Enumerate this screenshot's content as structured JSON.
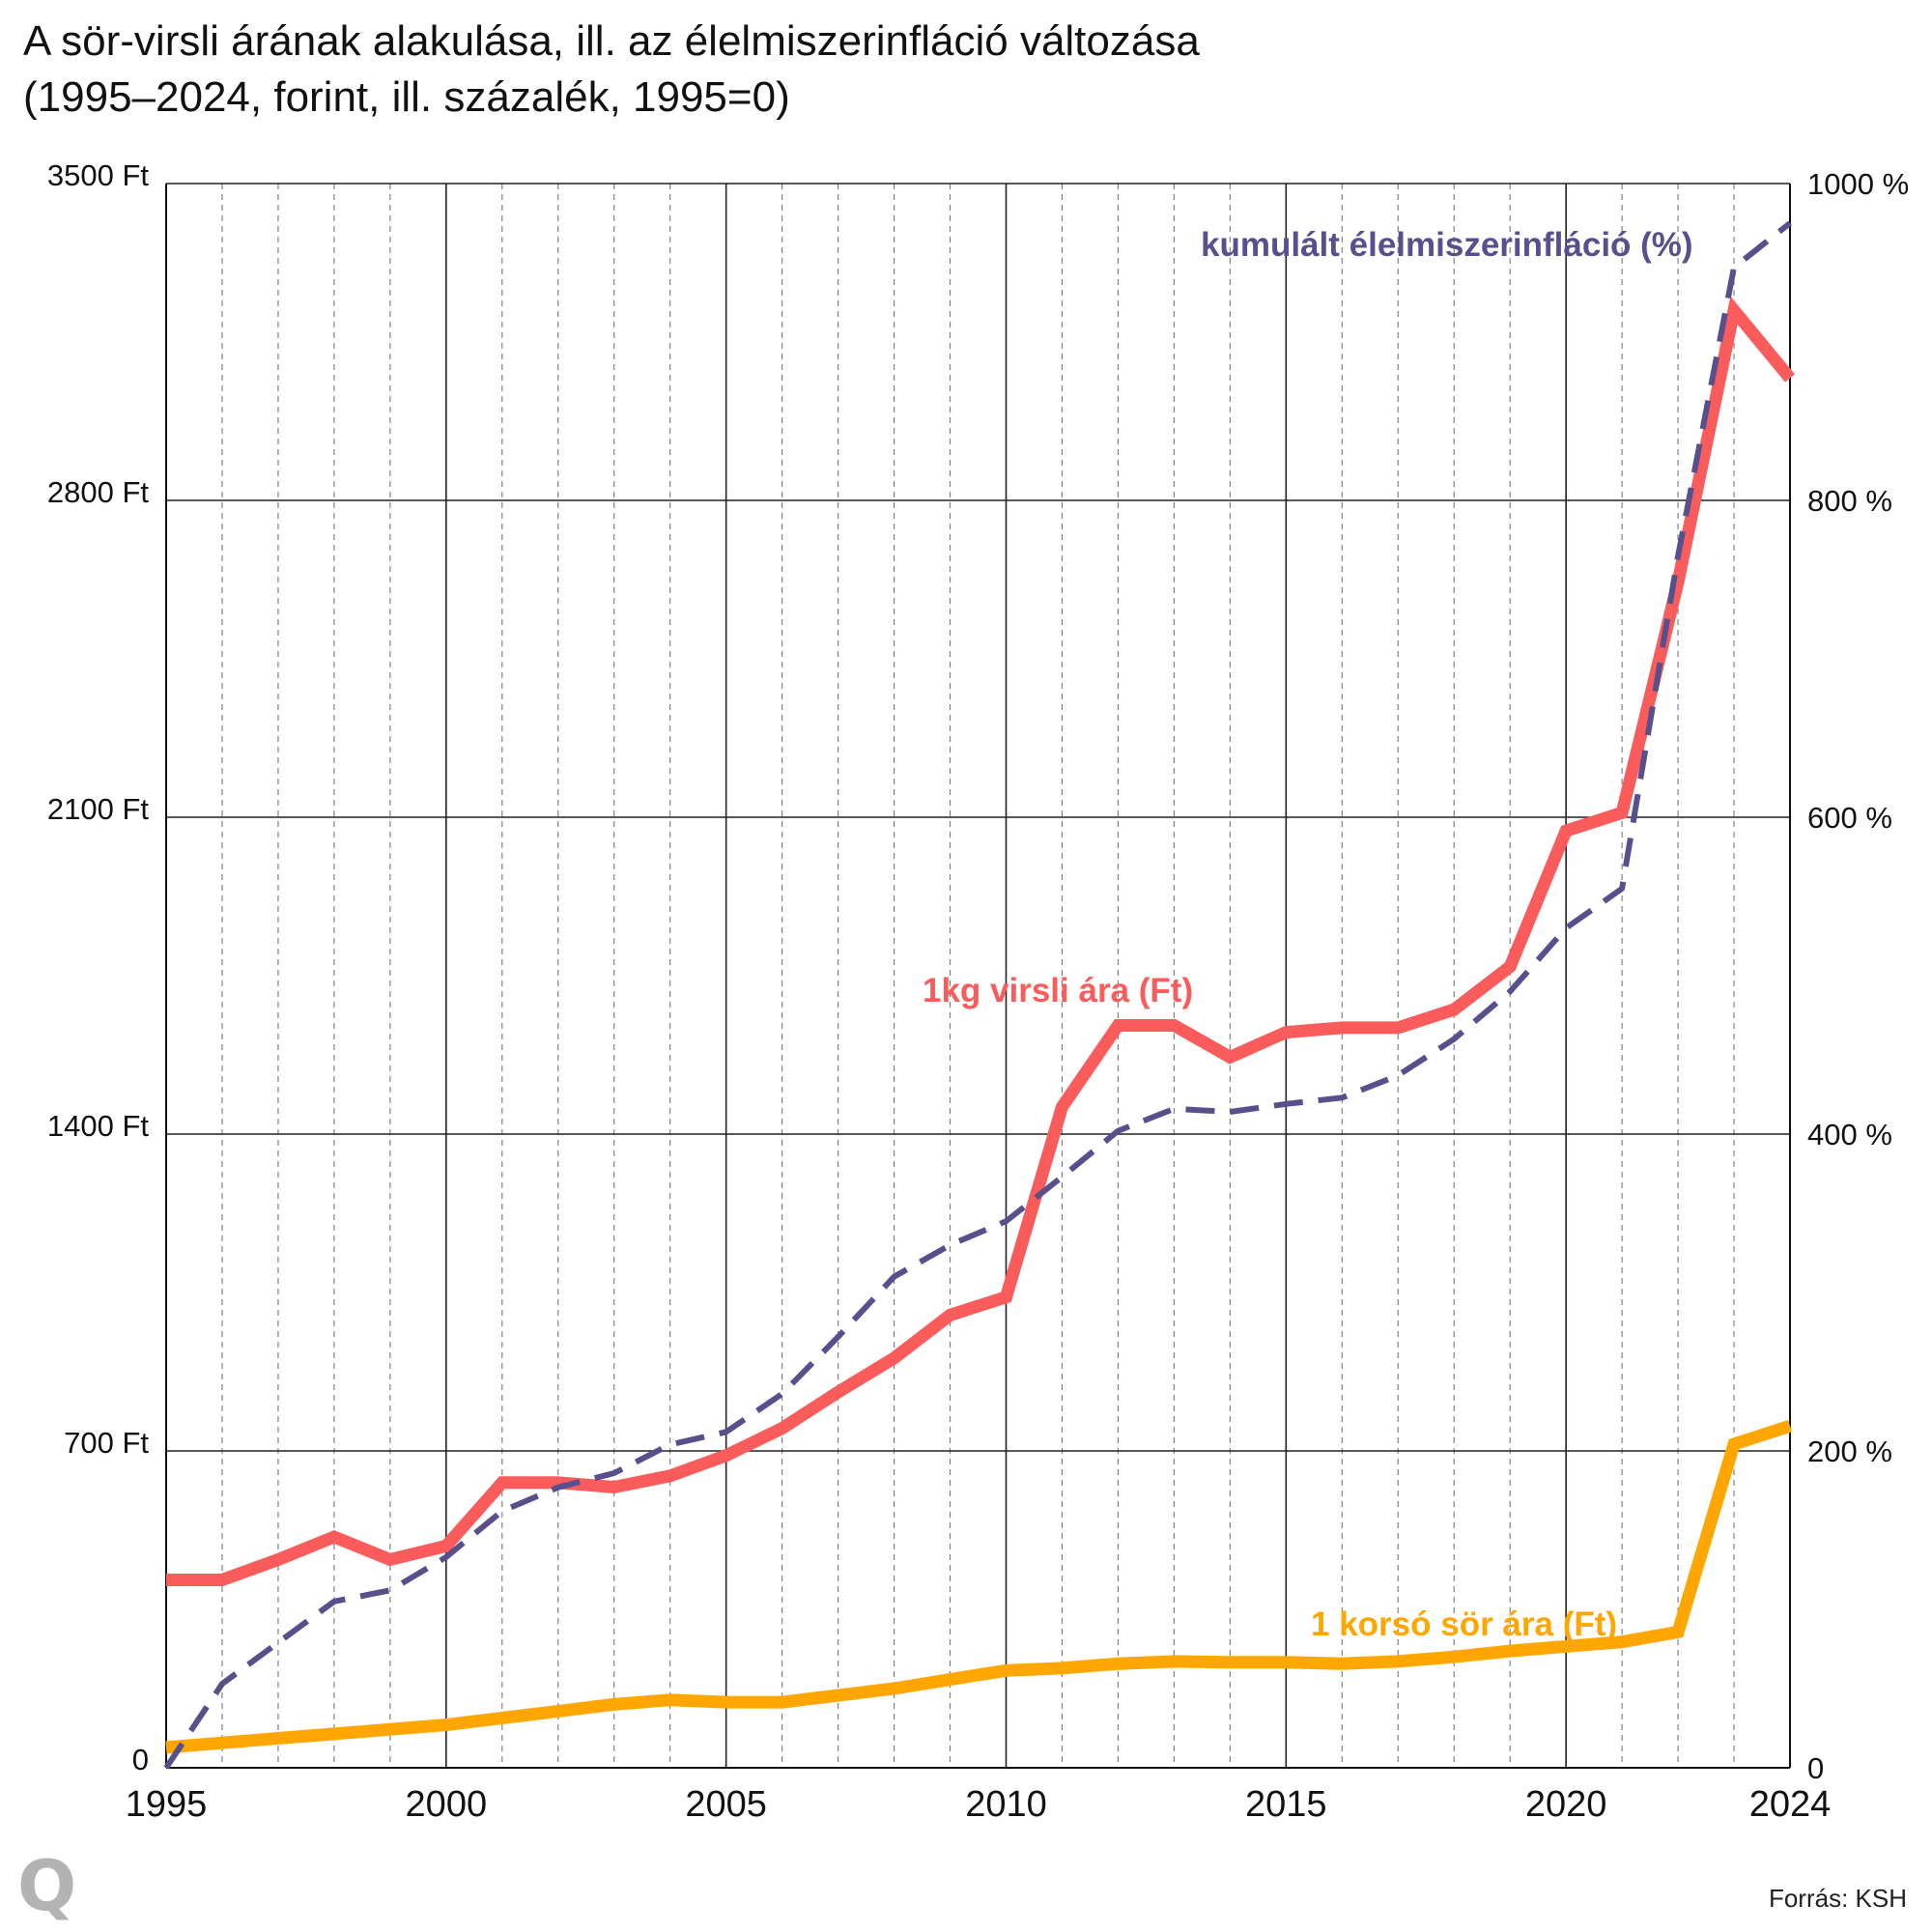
{
  "title": "A sör-virsli árának alakulása, ill. az élelmiszerinfláció változása\n(1995–2024, forint, ill. százalék, 1995=0)",
  "source": "Forrás: KSH",
  "logo": "Q",
  "chart_data": {
    "type": "line",
    "x": [
      1995,
      1996,
      1997,
      1998,
      1999,
      2000,
      2001,
      2002,
      2003,
      2004,
      2005,
      2006,
      2007,
      2008,
      2009,
      2010,
      2011,
      2012,
      2013,
      2014,
      2015,
      2016,
      2017,
      2018,
      2019,
      2020,
      2021,
      2022,
      2023,
      2024
    ],
    "x_ticks": [
      {
        "value": 1995,
        "label": "1995"
      },
      {
        "value": 2000,
        "label": "2000"
      },
      {
        "value": 2005,
        "label": "2005"
      },
      {
        "value": 2010,
        "label": "2010"
      },
      {
        "value": 2015,
        "label": "2015"
      },
      {
        "value": 2020,
        "label": "2020"
      },
      {
        "value": 2024,
        "label": "2024"
      }
    ],
    "xlim": [
      1995,
      2024
    ],
    "y_left": {
      "range": [
        0,
        3500
      ],
      "ticks": [
        {
          "value": 0,
          "label": "0"
        },
        {
          "value": 700,
          "label": "700 Ft"
        },
        {
          "value": 1400,
          "label": "1400 Ft"
        },
        {
          "value": 2100,
          "label": "2100 Ft"
        },
        {
          "value": 2800,
          "label": "2800 Ft"
        },
        {
          "value": 3500,
          "label": "3500 Ft"
        }
      ]
    },
    "y_right": {
      "range": [
        0,
        1000
      ],
      "ticks": [
        {
          "value": 0,
          "label": "0"
        },
        {
          "value": 200,
          "label": "200 %"
        },
        {
          "value": 400,
          "label": "400 %"
        },
        {
          "value": 600,
          "label": "600 %"
        },
        {
          "value": 800,
          "label": "800 %"
        },
        {
          "value": 1000,
          "label": "1000 %"
        }
      ]
    },
    "grid": true,
    "series": [
      {
        "name": "1kg virsli ára (Ft)",
        "axis": "left",
        "color": "#fa5c5c",
        "style": "solid",
        "values": [
          415,
          415,
          460,
          510,
          460,
          490,
          630,
          630,
          620,
          645,
          690,
          750,
          830,
          905,
          1000,
          1040,
          1460,
          1640,
          1640,
          1570,
          1625,
          1635,
          1635,
          1675,
          1770,
          2070,
          2110,
          2620,
          3220,
          3070
        ]
      },
      {
        "name": "kumulált élelmiszerinfláció (%)",
        "axis": "right",
        "color": "#58508d",
        "style": "dashed",
        "values": [
          0,
          53,
          79,
          105,
          112,
          133,
          162,
          177,
          186,
          204,
          212,
          236,
          272,
          310,
          330,
          345,
          373,
          402,
          416,
          414,
          419,
          423,
          437,
          460,
          490,
          530,
          555,
          765,
          947,
          975
        ]
      },
      {
        "name": "1 korsó sör ára (Ft)",
        "axis": "left",
        "color": "#ffa600",
        "style": "solid",
        "values": [
          45,
          55,
          65,
          75,
          85,
          95,
          110,
          125,
          140,
          150,
          145,
          145,
          160,
          175,
          195,
          215,
          220,
          230,
          235,
          233,
          233,
          230,
          235,
          245,
          258,
          268,
          278,
          300,
          715,
          755
        ]
      }
    ]
  }
}
